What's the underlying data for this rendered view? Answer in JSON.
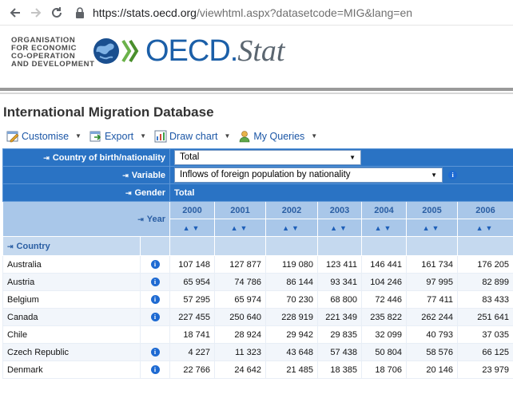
{
  "browser": {
    "back_icon": "arrow-left-icon",
    "forward_icon": "arrow-right-icon",
    "reload_icon": "reload-icon",
    "lock_icon": "lock-icon",
    "url_host": "https://stats.oecd.org",
    "url_path": "/viewhtml.aspx?datasetcode=MIG&lang=en"
  },
  "logo": {
    "org_lines": [
      "ORGANISATION",
      "FOR ECONOMIC",
      "CO-OPERATION",
      "AND DEVELOPMENT"
    ],
    "brand_main": "OECD.",
    "brand_sub": "Stat"
  },
  "page_title": "International Migration Database",
  "toolbar": {
    "customise": "Customise",
    "export": "Export",
    "draw_chart": "Draw chart",
    "my_queries": "My Queries"
  },
  "grid": {
    "dim_country_label": "Country of birth/nationality",
    "dim_country_value": "Total",
    "dim_variable_label": "Variable",
    "dim_variable_value": "Inflows of foreign population by nationality",
    "dim_gender_label": "Gender",
    "dim_gender_value": "Total",
    "year_label": "Year",
    "country_label": "Country",
    "years": [
      "2000",
      "2001",
      "2002",
      "2003",
      "2004",
      "2005",
      "2006"
    ],
    "rows": [
      {
        "name": "Australia",
        "info": true,
        "values": [
          "107 148",
          "127 877",
          "119 080",
          "123 411",
          "146 441",
          "161 734",
          "176 205"
        ]
      },
      {
        "name": "Austria",
        "info": true,
        "values": [
          "65 954",
          "74 786",
          "86 144",
          "93 341",
          "104 246",
          "97 995",
          "82 899"
        ]
      },
      {
        "name": "Belgium",
        "info": true,
        "values": [
          "57 295",
          "65 974",
          "70 230",
          "68 800",
          "72 446",
          "77 411",
          "83 433"
        ]
      },
      {
        "name": "Canada",
        "info": true,
        "values": [
          "227 455",
          "250 640",
          "228 919",
          "221 349",
          "235 822",
          "262 244",
          "251 641"
        ]
      },
      {
        "name": "Chile",
        "info": false,
        "values": [
          "18 741",
          "28 924",
          "29 942",
          "29 835",
          "32 099",
          "40 793",
          "37 035"
        ]
      },
      {
        "name": "Czech Republic",
        "info": true,
        "values": [
          "4 227",
          "11 323",
          "43 648",
          "57 438",
          "50 804",
          "58 576",
          "66 125"
        ]
      },
      {
        "name": "Denmark",
        "info": true,
        "values": [
          "22 766",
          "24 642",
          "21 485",
          "18 385",
          "18 706",
          "20 146",
          "23 979"
        ]
      }
    ]
  },
  "colors": {
    "dim_bg": "#2a73c4",
    "year_bg": "#a9c7e9",
    "link_blue": "#1b56a6",
    "brand_blue": "#1b5fa8"
  }
}
